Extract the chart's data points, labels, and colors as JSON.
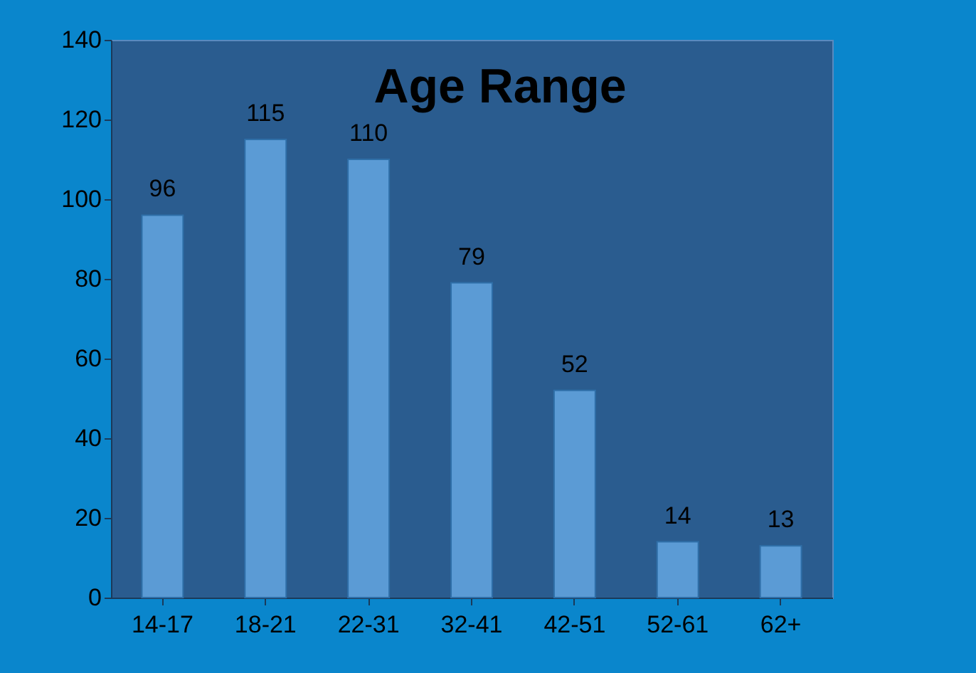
{
  "chart_data": {
    "type": "bar",
    "title": "Age Range",
    "categories": [
      "14-17",
      "18-21",
      "22-31",
      "32-41",
      "42-51",
      "52-61",
      "62+"
    ],
    "values": [
      96,
      115,
      110,
      79,
      52,
      14,
      13
    ],
    "color": "#5b9bd5",
    "ylim": [
      0,
      140
    ],
    "yticks": [
      0,
      20,
      40,
      60,
      80,
      100,
      120,
      140
    ],
    "grid": false,
    "data_labels": true
  }
}
